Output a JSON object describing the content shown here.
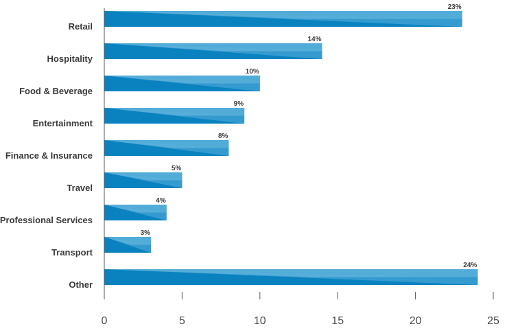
{
  "chart_data": {
    "type": "bar",
    "orientation": "horizontal",
    "categories": [
      "Retail",
      "Hospitality",
      "Food & Beverage",
      "Entertainment",
      "Finance & Insurance",
      "Travel",
      "Professional Services",
      "Transport",
      "Other"
    ],
    "values": [
      23,
      14,
      10,
      9,
      8,
      5,
      4,
      3,
      24
    ],
    "value_labels": [
      "23%",
      "14%",
      "10%",
      "9%",
      "8%",
      "5%",
      "4%",
      "3%",
      "24%"
    ],
    "xlim": [
      0,
      25
    ],
    "xticks": [
      0,
      5,
      10,
      15,
      20,
      25
    ],
    "xtick_labels": [
      "0",
      "5",
      "10",
      "15",
      "20",
      "25"
    ],
    "title": "",
    "xlabel": "",
    "ylabel": "",
    "grid": false,
    "colors": {
      "bar_dark": "#0a82c0",
      "bar_light": "#5ab0da",
      "axis": "#555555"
    }
  }
}
